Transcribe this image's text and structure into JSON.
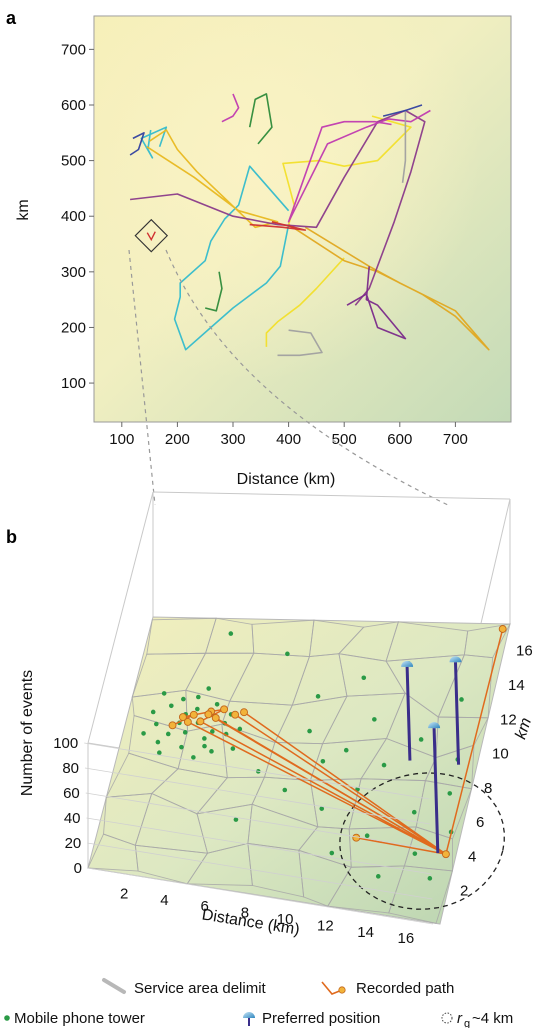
{
  "panel_a": {
    "letter": "a",
    "ylabel": "km",
    "xlabel": "Distance (km)"
  },
  "panel_b": {
    "letter": "b",
    "zlabel": "Number of events",
    "xlabel": "Distance (km)",
    "ylabel": "km"
  },
  "legend": {
    "service_area": "Service area delimit",
    "recorded_path": "Recorded path",
    "tower": "Mobile phone tower",
    "preferred": "Preferred position",
    "rg_symbol": "r",
    "rg_sub": "g",
    "rg_value": "~4 km"
  },
  "colors": {
    "map_bg_light": "#fbf3c4",
    "map_bg_dark": "#c6dcbc",
    "tower": "#2a9a46",
    "recorded_path": "#e06a1e",
    "preferred": "#3a93c9",
    "spikes": "#3a2e8a",
    "service_area": "#b3b3b3"
  },
  "chart_data": [
    {
      "type": "line",
      "panel": "a",
      "xlabel": "Distance (km)",
      "ylabel": "km",
      "xlim": [
        50,
        800
      ],
      "ylim": [
        30,
        760
      ],
      "x_ticks": [
        100,
        200,
        300,
        400,
        500,
        600,
        700
      ],
      "y_ticks": [
        100,
        200,
        300,
        400,
        500,
        600,
        700
      ],
      "zoom_box_center": [
        153,
        365
      ],
      "series": [
        {
          "color": "#33bbcc",
          "points": [
            [
              152,
              555
            ],
            [
              147,
              520
            ],
            [
              155,
              505
            ],
            [
              135,
              540
            ],
            [
              180,
              560
            ],
            [
              168,
              525
            ]
          ]
        },
        {
          "color": "#33bbcc",
          "points": [
            [
              400,
              410
            ],
            [
              330,
              490
            ],
            [
              310,
              420
            ],
            [
              285,
              395
            ],
            [
              260,
              355
            ],
            [
              250,
              320
            ],
            [
              205,
              280
            ],
            [
              205,
              255
            ],
            [
              195,
              215
            ],
            [
              215,
              160
            ],
            [
              260,
              200
            ],
            [
              300,
              235
            ],
            [
              360,
              280
            ],
            [
              385,
              310
            ],
            [
              400,
              385
            ]
          ]
        },
        {
          "color": "#e8b820",
          "points": [
            [
              145,
              525
            ],
            [
              230,
              470
            ],
            [
              310,
              410
            ],
            [
              380,
              390
            ],
            [
              340,
              380
            ],
            [
              235,
              480
            ],
            [
              200,
              520
            ],
            [
              180,
              555
            ],
            [
              150,
              535
            ]
          ]
        },
        {
          "color": "#f2df2a",
          "points": [
            [
              500,
              325
            ],
            [
              450,
              270
            ],
            [
              420,
              240
            ],
            [
              380,
              210
            ],
            [
              360,
              190
            ],
            [
              360,
              165
            ]
          ]
        },
        {
          "color": "#f2df2a",
          "points": [
            [
              400,
              385
            ],
            [
              410,
              420
            ],
            [
              390,
              495
            ],
            [
              455,
              500
            ],
            [
              500,
              490
            ],
            [
              560,
              500
            ],
            [
              620,
              560
            ],
            [
              550,
              580
            ]
          ]
        },
        {
          "color": "#e0a820",
          "points": [
            [
              400,
              385
            ],
            [
              500,
              320
            ],
            [
              560,
              300
            ],
            [
              640,
              260
            ],
            [
              700,
              220
            ],
            [
              760,
              160
            ],
            [
              700,
              230
            ],
            [
              600,
              280
            ],
            [
              545,
              310
            ],
            [
              430,
              380
            ]
          ]
        },
        {
          "color": "#8a3a8a",
          "points": [
            [
              115,
              430
            ],
            [
              200,
              440
            ],
            [
              300,
              400
            ],
            [
              380,
              385
            ],
            [
              450,
              380
            ],
            [
              500,
              470
            ],
            [
              560,
              570
            ],
            [
              610,
              590
            ],
            [
              645,
              570
            ],
            [
              620,
              480
            ],
            [
              590,
              390
            ],
            [
              545,
              270
            ],
            [
              520,
              240
            ]
          ]
        },
        {
          "color": "#c03ab0",
          "points": [
            [
              585,
              565
            ],
            [
              555,
              570
            ],
            [
              500,
              570
            ],
            [
              460,
              560
            ],
            [
              400,
              390
            ],
            [
              470,
              530
            ],
            [
              540,
              560
            ],
            [
              580,
              575
            ],
            [
              620,
              570
            ],
            [
              655,
              590
            ]
          ]
        },
        {
          "color": "#7a2a8a",
          "points": [
            [
              545,
              310
            ],
            [
              540,
              250
            ],
            [
              560,
              240
            ],
            [
              610,
              180
            ],
            [
              560,
              200
            ],
            [
              540,
              260
            ],
            [
              505,
              240
            ]
          ]
        },
        {
          "color": "#d03030",
          "points": [
            [
              370,
              390
            ],
            [
              430,
              375
            ],
            [
              390,
              380
            ],
            [
              330,
              385
            ]
          ]
        },
        {
          "color": "#2d8a3a",
          "points": [
            [
              330,
              560
            ],
            [
              340,
              610
            ],
            [
              360,
              620
            ],
            [
              370,
              560
            ],
            [
              345,
              530
            ]
          ]
        },
        {
          "color": "#2d8a3a",
          "points": [
            [
              275,
              300
            ],
            [
              280,
              270
            ],
            [
              270,
              230
            ],
            [
              250,
              235
            ]
          ]
        },
        {
          "color": "#a0a0a0",
          "points": [
            [
              400,
              195
            ],
            [
              440,
              190
            ],
            [
              460,
              155
            ],
            [
              420,
              150
            ],
            [
              380,
              150
            ]
          ]
        },
        {
          "color": "#a0a0a0",
          "points": [
            [
              610,
              590
            ],
            [
              610,
              500
            ],
            [
              605,
              460
            ]
          ]
        },
        {
          "color": "#3040a0",
          "points": [
            [
              120,
              540
            ],
            [
              140,
              550
            ],
            [
              130,
              520
            ],
            [
              115,
              510
            ]
          ]
        },
        {
          "color": "#3040a0",
          "points": [
            [
              570,
              580
            ],
            [
              610,
              590
            ],
            [
              640,
              600
            ]
          ]
        },
        {
          "color": "#c03ab0",
          "points": [
            [
              300,
              620
            ],
            [
              310,
              595
            ],
            [
              300,
              580
            ],
            [
              280,
              570
            ]
          ]
        }
      ]
    },
    {
      "type": "scatter",
      "panel": "b",
      "subtype": "3d-surface-with-spikes",
      "xlabel": "Distance (km)",
      "ylabel": "km",
      "zlabel": "Number of events",
      "x_ticks": [
        2,
        4,
        6,
        8,
        10,
        12,
        14,
        16
      ],
      "y_ticks": [
        2,
        4,
        6,
        8,
        10,
        12,
        14,
        16
      ],
      "z_ticks": [
        0,
        20,
        40,
        60,
        80,
        100
      ],
      "xlim": [
        0,
        17.5
      ],
      "ylim": [
        0,
        17.5
      ],
      "zlim": [
        0,
        100
      ],
      "towers": [
        [
          4,
          16.5
        ],
        [
          7,
          15.3
        ],
        [
          11,
          14
        ],
        [
          13,
          15
        ],
        [
          16,
          13
        ],
        [
          9,
          12.7
        ],
        [
          12,
          11.5
        ],
        [
          14.5,
          10.5
        ],
        [
          16.5,
          9.5
        ],
        [
          9,
          10.5
        ],
        [
          11,
          9.5
        ],
        [
          13,
          8.8
        ],
        [
          16.5,
          7.5
        ],
        [
          10,
          8.7
        ],
        [
          12,
          7.2
        ],
        [
          15,
          6.2
        ],
        [
          17,
          5.3
        ],
        [
          10.5,
          5.8
        ],
        [
          13,
          4.5
        ],
        [
          15.5,
          3.8
        ],
        [
          16.5,
          2.5
        ],
        [
          11.5,
          3.2
        ],
        [
          14,
          2.2
        ],
        [
          8.5,
          6.7
        ],
        [
          7,
          7.7
        ],
        [
          5.5,
          9
        ],
        [
          4.3,
          10
        ],
        [
          6.5,
          4.5
        ],
        [
          3.2,
          12.2
        ],
        [
          5,
          11.2
        ],
        [
          2,
          11.5
        ],
        [
          1.5,
          10.2
        ],
        [
          3,
          8.8
        ],
        [
          2.2,
          9.6
        ],
        [
          3.5,
          10.5
        ],
        [
          2.8,
          11
        ],
        [
          4,
          9.5
        ],
        [
          1.8,
          9
        ],
        [
          3.7,
          8.2
        ],
        [
          4.5,
          8.7
        ],
        [
          2.5,
          12
        ],
        [
          1.2,
          11
        ],
        [
          4.2,
          11.8
        ],
        [
          3,
          9.8
        ],
        [
          2,
          8.3
        ],
        [
          5,
          9.9
        ],
        [
          3.6,
          12.8
        ],
        [
          1,
          9.5
        ],
        [
          2.6,
          10.4
        ],
        [
          4.8,
          10.6
        ],
        [
          3.3,
          11.4
        ],
        [
          1.5,
          12.3
        ],
        [
          5.6,
          10.3
        ],
        [
          4.1,
          9
        ]
      ],
      "recorded_path": [
        [
          2.3,
          10.2
        ],
        [
          3.2,
          11
        ],
        [
          2.7,
          10.8
        ],
        [
          4,
          11.3
        ],
        [
          4.6,
          11.5
        ],
        [
          3.6,
          10.6
        ],
        [
          17,
          4
        ],
        [
          4.3,
          10.9
        ],
        [
          17,
          4
        ],
        [
          5.6,
          11.4
        ],
        [
          17,
          4
        ],
        [
          3,
          10.5
        ],
        [
          17,
          4
        ],
        [
          3.9,
          11.1
        ],
        [
          17,
          4
        ],
        [
          12.5,
          4.3
        ],
        [
          17,
          4
        ],
        [
          17.2,
          17.2
        ],
        [
          17,
          4
        ],
        [
          5.2,
          11.2
        ],
        [
          17,
          4
        ]
      ],
      "path_nodes": [
        [
          2.3,
          10.2
        ],
        [
          3.2,
          11
        ],
        [
          2.7,
          10.8
        ],
        [
          4,
          11.3
        ],
        [
          4.6,
          11.5
        ],
        [
          3.6,
          10.6
        ],
        [
          4.3,
          10.9
        ],
        [
          5.6,
          11.4
        ],
        [
          3,
          10.5
        ],
        [
          3.9,
          11.1
        ],
        [
          5.2,
          11.2
        ],
        [
          12.5,
          4.3
        ],
        [
          17,
          4
        ],
        [
          17.2,
          17.2
        ]
      ],
      "preferred_positions": [
        {
          "x": 16.6,
          "y": 4.0,
          "events": 100
        },
        {
          "x": 16.6,
          "y": 9.2,
          "events": 82
        },
        {
          "x": 14.2,
          "y": 9.2,
          "events": 75
        }
      ],
      "rg_circle": {
        "center": [
          15.7,
          4.6
        ],
        "radius_km": 4
      }
    }
  ]
}
